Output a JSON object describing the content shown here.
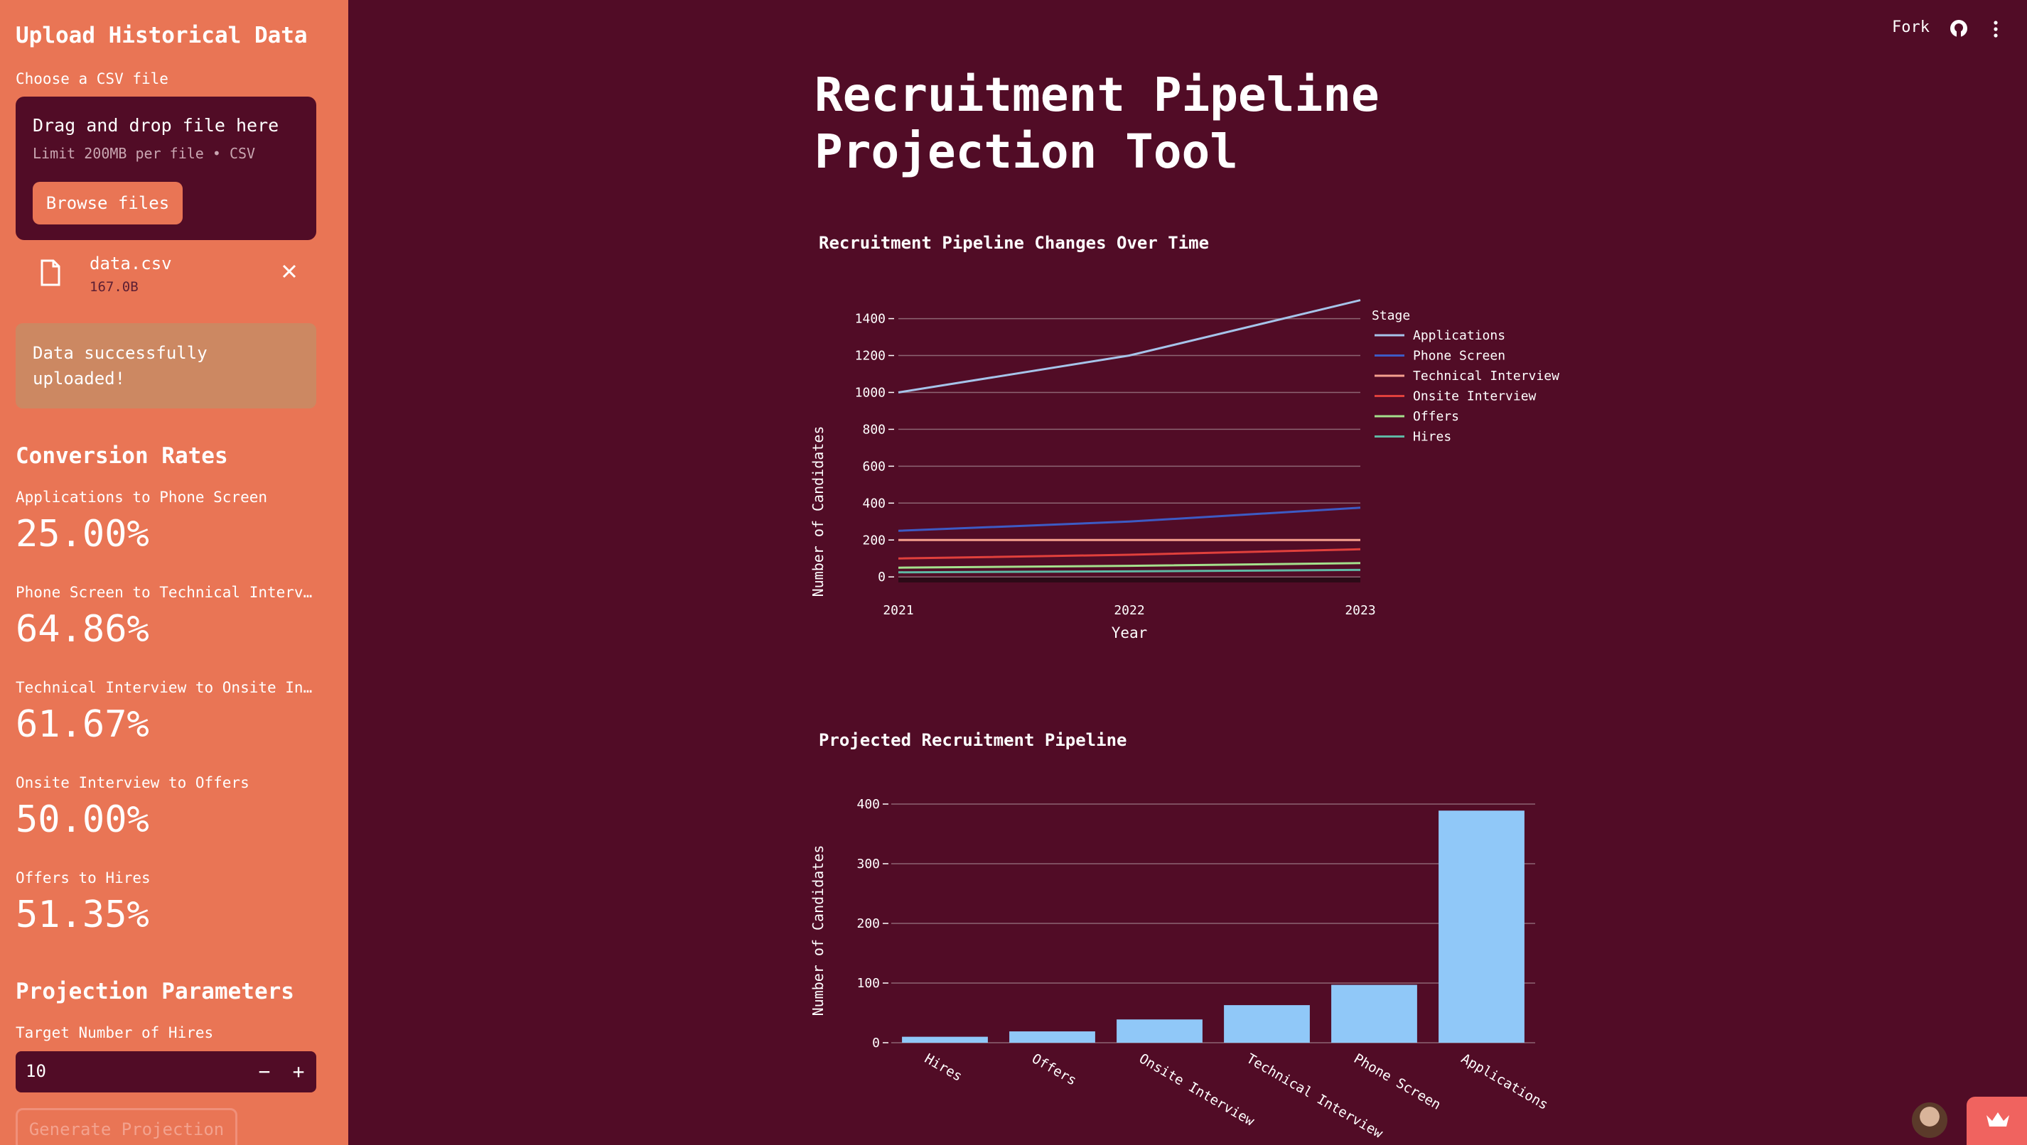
{
  "sidebar": {
    "upload_heading": "Upload Historical Data",
    "choose_label": "Choose a CSV file",
    "dropzone_title": "Drag and drop file here",
    "dropzone_limit": "Limit 200MB per file • CSV",
    "browse_label": "Browse files",
    "file_name": "data.csv",
    "file_size": "167.0B",
    "success_message": "Data successfully uploaded!",
    "conversion_heading": "Conversion Rates",
    "metrics": [
      {
        "label": "Applications to Phone Screen",
        "value": "25.00%"
      },
      {
        "label": "Phone Screen to Technical Interv…",
        "value": "64.86%"
      },
      {
        "label": "Technical Interview to Onsite In…",
        "value": "61.67%"
      },
      {
        "label": "Onsite Interview to Offers",
        "value": "50.00%"
      },
      {
        "label": "Offers to Hires",
        "value": "51.35%"
      }
    ],
    "projection_heading": "Projection Parameters",
    "target_label": "Target Number of Hires",
    "target_value": "10",
    "minus": "−",
    "plus": "+",
    "generate_label": "Generate Projection"
  },
  "header": {
    "fork_label": "Fork",
    "github_icon": "github-icon",
    "menu_icon": "kebab-menu-icon"
  },
  "main": {
    "title": "Recruitment Pipeline Projection Tool"
  },
  "colors": {
    "background": "#510c26",
    "sidebar": "#e97555",
    "bar": "#90c8f8"
  },
  "chart_data": [
    {
      "type": "line",
      "title": "Recruitment Pipeline Changes Over Time",
      "xlabel": "Year",
      "ylabel": "Number of Candidates",
      "x": [
        "2021",
        "2022",
        "2023"
      ],
      "y_ticks": [
        "0",
        "200",
        "400",
        "600",
        "800",
        "1000",
        "1200",
        "1400"
      ],
      "ylim": [
        -30,
        1510
      ],
      "legend_title": "Stage",
      "legend_position": "right",
      "grid": true,
      "series": [
        {
          "name": "Applications",
          "color": "#a6c4ea",
          "values": [
            1000,
            1200,
            1500
          ]
        },
        {
          "name": "Phone Screen",
          "color": "#3d5bc4",
          "values": [
            250,
            300,
            375
          ]
        },
        {
          "name": "Technical Interview",
          "color": "#f5a08e",
          "values": [
            200,
            200,
            200
          ]
        },
        {
          "name": "Onsite Interview",
          "color": "#e0403c",
          "values": [
            100,
            120,
            150
          ]
        },
        {
          "name": "Offers",
          "color": "#a4e08c",
          "values": [
            50,
            60,
            75
          ]
        },
        {
          "name": "Hires",
          "color": "#5fb8a4",
          "values": [
            25,
            30,
            38
          ]
        }
      ]
    },
    {
      "type": "bar",
      "title": "Projected Recruitment Pipeline",
      "xlabel": "",
      "ylabel": "Number of Candidates",
      "categories": [
        "Hires",
        "Offers",
        "Onsite Interview",
        "Technical Interview",
        "Phone Screen",
        "Applications"
      ],
      "values": [
        10,
        19,
        39,
        63,
        97,
        389
      ],
      "y_ticks": [
        "0",
        "100",
        "200",
        "300",
        "400"
      ],
      "ylim": [
        0,
        400
      ],
      "grid": true
    }
  ]
}
